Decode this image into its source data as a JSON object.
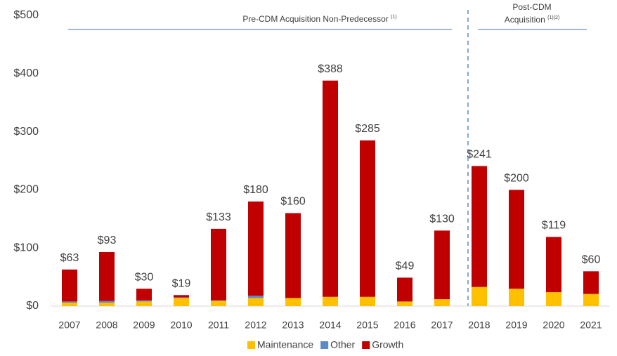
{
  "chart_data": {
    "type": "stacked_bar",
    "categories": [
      "2007",
      "2008",
      "2009",
      "2010",
      "2011",
      "2012",
      "2013",
      "2014",
      "2015",
      "2016",
      "2017",
      "2018",
      "2019",
      "2020",
      "2021"
    ],
    "series": [
      {
        "name": "Maintenance",
        "color": "#ffc000",
        "values": [
          6,
          6,
          8,
          14,
          9,
          14,
          14,
          16,
          16,
          8,
          12,
          33,
          30,
          24,
          21
        ]
      },
      {
        "name": "Other",
        "color": "#5b8cc5",
        "values": [
          2,
          3,
          2,
          1,
          1,
          4,
          0,
          0,
          0,
          0,
          0,
          0,
          0,
          0,
          0
        ]
      },
      {
        "name": "Growth",
        "color": "#c00000",
        "values": [
          55,
          84,
          20,
          4,
          123,
          162,
          146,
          372,
          269,
          41,
          118,
          208,
          170,
          95,
          39
        ]
      }
    ],
    "totals": {
      "values": [
        63,
        93,
        30,
        19,
        133,
        180,
        160,
        388,
        285,
        49,
        130,
        241,
        200,
        119,
        60
      ],
      "value_labels": [
        "$63",
        "$93",
        "$30",
        "$19",
        "$133",
        "$180",
        "$160",
        "$388",
        "$285",
        "$49",
        "$130",
        "$241",
        "$200",
        "$119",
        "$60"
      ]
    },
    "ylim": [
      0,
      500
    ],
    "yticks": [
      {
        "value": 0,
        "label": "$0"
      },
      {
        "value": 100,
        "label": "$100"
      },
      {
        "value": 200,
        "label": "$200"
      },
      {
        "value": 300,
        "label": "$300"
      },
      {
        "value": 400,
        "label": "$400"
      },
      {
        "value": 500,
        "label": "$500"
      }
    ],
    "annotations": {
      "pre": {
        "text": "Pre-CDM Acquisition Non-Predecessor",
        "note": "(1)"
      },
      "post": {
        "line1": "Post-CDM",
        "line2": "Acquisition",
        "note": "(1)(2)"
      }
    },
    "legend": "bottom"
  }
}
